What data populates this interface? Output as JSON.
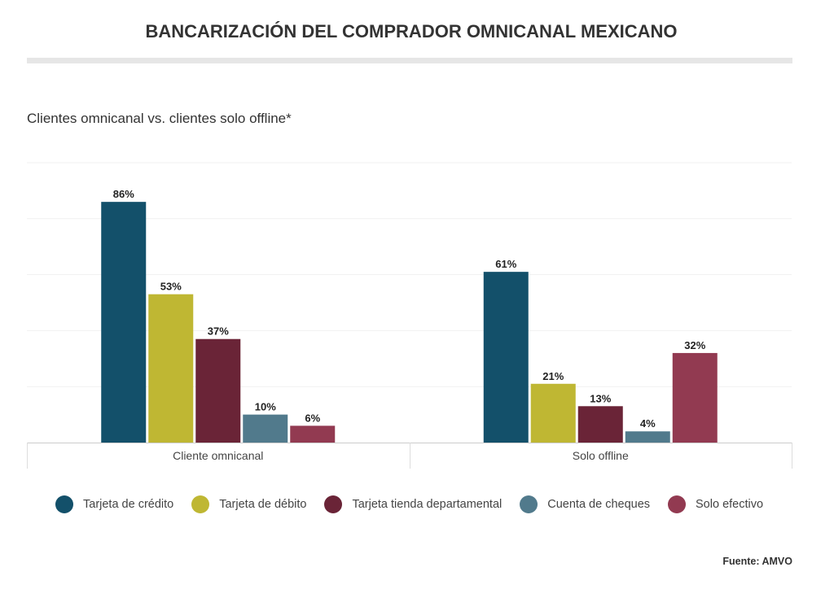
{
  "chart_data": {
    "type": "bar",
    "title": "BANCARIZACIÓN DEL COMPRADOR OMNICANAL MEXICANO",
    "subtitle": "Clientes omnicanal vs. clientes solo offline*",
    "categories": [
      "Cliente omnicanal",
      "Solo offline"
    ],
    "series": [
      {
        "name": "Tarjeta de crédito",
        "color": "#13506a",
        "values": [
          86,
          61
        ],
        "labels": [
          "86%",
          "61%"
        ]
      },
      {
        "name": "Tarjeta de débito",
        "color": "#bfb733",
        "values": [
          53,
          21
        ],
        "labels": [
          "53%",
          "21%"
        ]
      },
      {
        "name": "Tarjeta tienda departamental",
        "color": "#6a2437",
        "values": [
          37,
          13
        ],
        "labels": [
          "37%",
          "13%"
        ]
      },
      {
        "name": "Cuenta de cheques",
        "color": "#517a8c",
        "values": [
          10,
          4
        ],
        "labels": [
          "10%",
          "4%"
        ]
      },
      {
        "name": "Solo efectivo",
        "color": "#923a51",
        "values": [
          6,
          32
        ],
        "labels": [
          "6%",
          "32%"
        ]
      }
    ],
    "ylim": [
      0,
      100
    ],
    "xlabel": "",
    "ylabel": "",
    "grid": true,
    "legend": "bottom",
    "source": "Fuente: AMVO"
  }
}
